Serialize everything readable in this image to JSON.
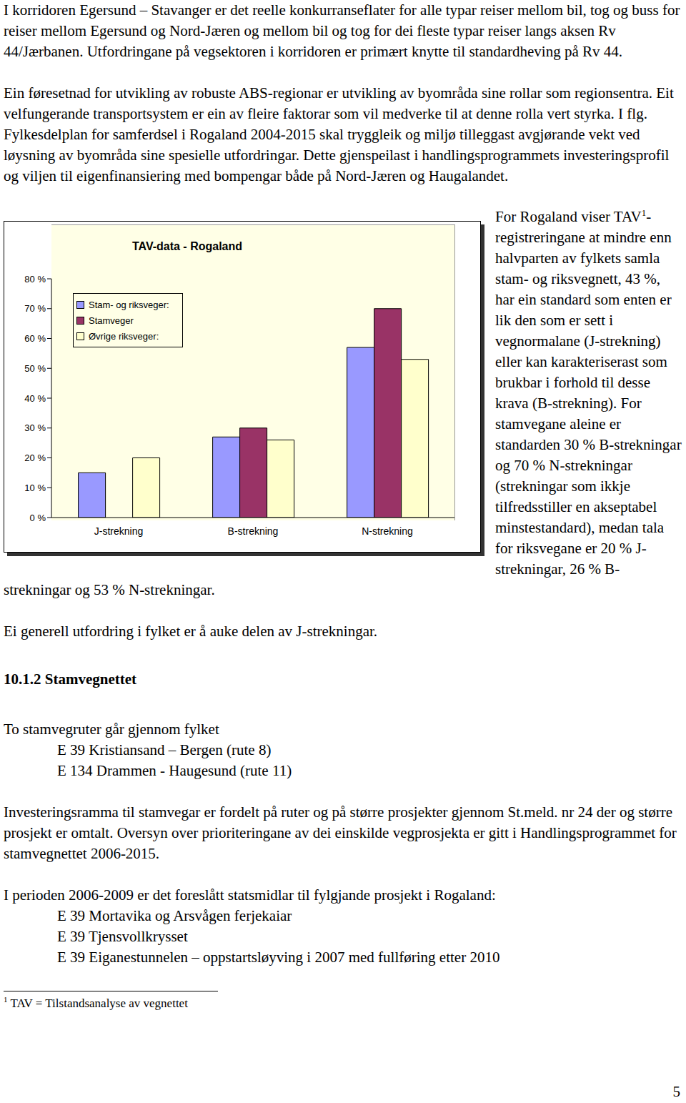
{
  "paragraphs": [
    "I korridoren Egersund – Stavanger er det reelle konkurranseflater for alle typar reiser mellom bil, tog og buss for reiser mellom Egersund og Nord-Jæren og mellom bil og tog for dei fleste typar reiser langs aksen Rv 44/Jærbanen. Utfordringane på vegsektoren i korridoren er primært knytte til standardheving på Rv 44.",
    "Ein føresetnad for utvikling av robuste ABS-regionar er utvikling av byområda sine rollar som regionsentra. Eit velfungerande transportsystem er ein av fleire faktorar som vil medverke til at denne rolla vert styrka. I flg. Fylkesdelplan for samferdsel i Rogaland 2004-2015 skal tryggleik og miljø tilleggast avgjørande vekt ved løysning av byområda sine spesielle utfordringar. Dette gjenspeilast i handlingsprogrammets investeringsprofil og viljen til eigenfinansiering med bompengar både på Nord-Jæren og Haugalandet."
  ],
  "chart_data": {
    "type": "bar",
    "title": "TAV-data - Rogaland",
    "categories": [
      "J-strekning",
      "B-strekning",
      "N-strekning"
    ],
    "series": [
      {
        "name": "Stam- og riksveger:",
        "color": "#9999ff",
        "values": [
          15,
          27,
          57
        ]
      },
      {
        "name": "Stamveger",
        "color": "#993366",
        "values": [
          0,
          30,
          70
        ]
      },
      {
        "name": "Øvrige riksveger:",
        "color": "#ffffcc",
        "values": [
          20,
          26,
          53
        ]
      }
    ],
    "ylim": [
      0,
      80
    ],
    "yticks": [
      {
        "value": 0,
        "label": "0 %"
      },
      {
        "value": 10,
        "label": "10 %"
      },
      {
        "value": 20,
        "label": "20 %"
      },
      {
        "value": 30,
        "label": "30 %"
      },
      {
        "value": 40,
        "label": "40 %"
      },
      {
        "value": 50,
        "label": "50 %"
      },
      {
        "value": 60,
        "label": "60 %"
      },
      {
        "value": 70,
        "label": "70 %"
      },
      {
        "value": 80,
        "label": "80 %"
      }
    ],
    "grid": false,
    "legend": "top-left"
  },
  "chart_text": {
    "before": "For Rogaland viser TAV",
    "sup": "1",
    "after": "-registreringane at mindre enn halvparten av fylkets samla stam- og riksvegnett, 43 %,  har ein standard som enten er lik den som er sett i vegnormalane (J-strekning) eller kan karakteriserast som brukbar i forhold til desse krava (B-strekning). For stamvegane aleine er standarden 30 % B-strekningar og 70 % N-strekningar (strekningar som ikkje tilfredsstiller en akseptabel minstestandard), medan tala for riksvegane er 20 % J-strekningar, 26 % B-strekningar og 53 % N-strekningar."
  },
  "paragraph_after_chart": "Ei generell utfordring i fylket er å auke delen av J-strekningar.",
  "section": {
    "number": "10.1.2",
    "title": "Stamvegnettet"
  },
  "routes_intro": "To stamvegruter går gjennom fylket",
  "routes": [
    "E 39 Kristiansand – Bergen (rute 8)",
    "E 134 Drammen - Haugesund (rute 11)"
  ],
  "investment_text": "Investeringsramma til stamvegar er fordelt på ruter og på større prosjekter gjennom St.meld. nr 24 der og større prosjekt er omtalt.  Oversyn over prioriteringane av dei einskilde vegprosjekta er gitt i Handlingsprogrammet for stamvegnettet 2006-2015.",
  "projects_intro": "I perioden 2006-2009 er det foreslått statsmidlar til fylgjande prosjekt i Rogaland:",
  "projects": [
    "E 39 Mortavika og Arsvågen ferjekaiar",
    "E 39 Tjensvollkrysset",
    "E 39 Eiganestunnelen – oppstartsløyving i 2007 med fullføring etter 2010"
  ],
  "footnote": {
    "mark": "1",
    "text": "TAV = Tilstandsanalyse av vegnettet"
  },
  "page_number": "5"
}
